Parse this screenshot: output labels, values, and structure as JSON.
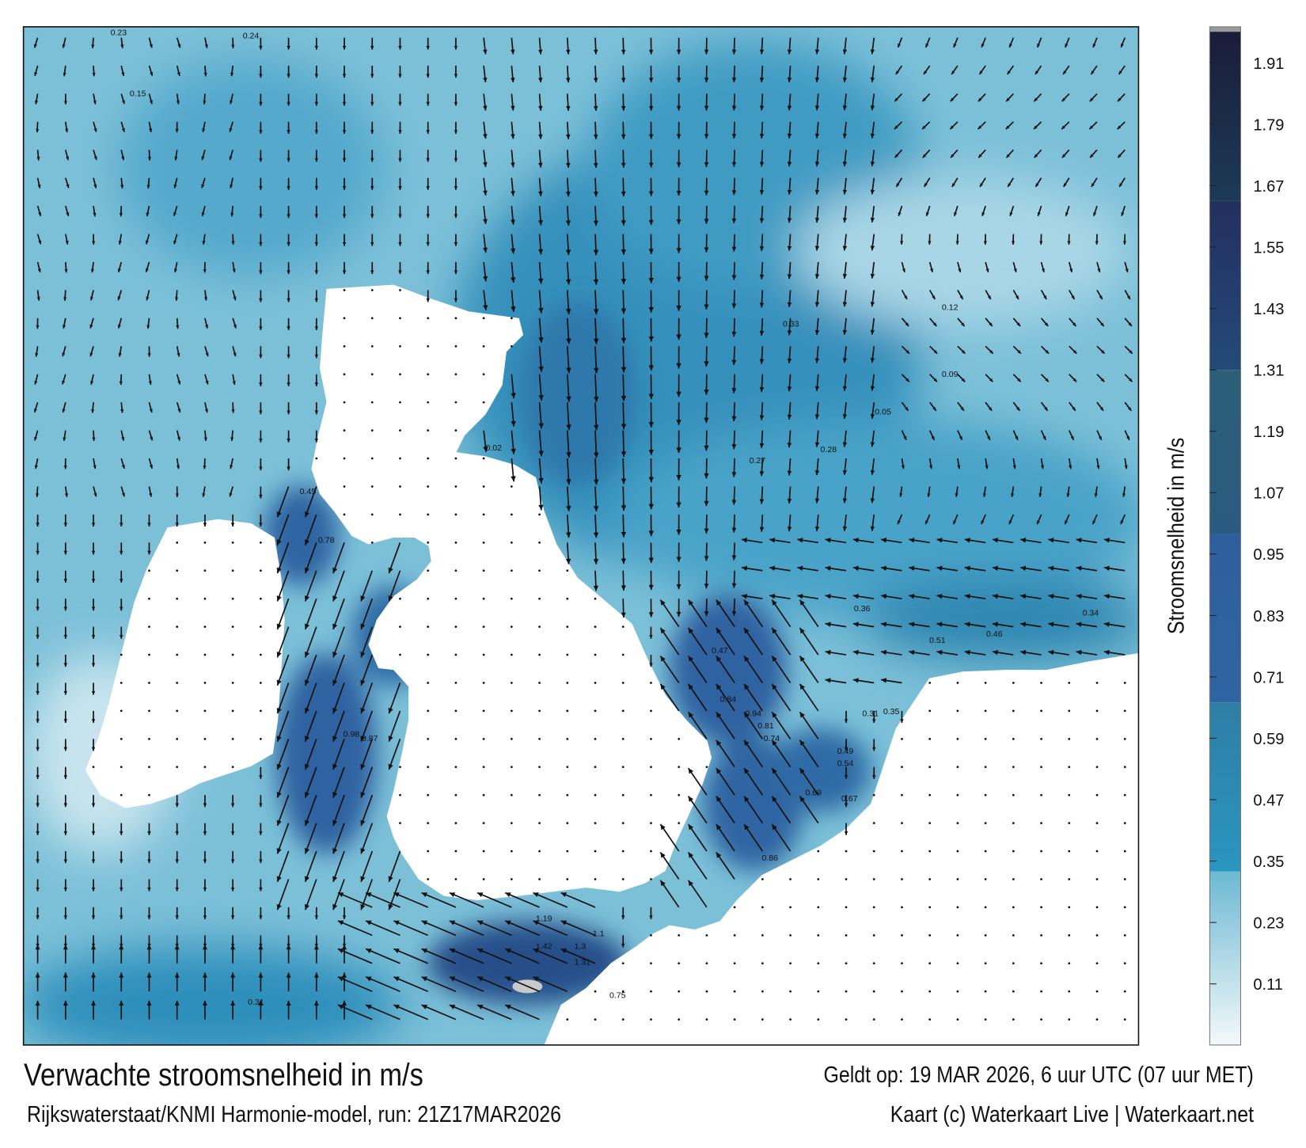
{
  "footer": {
    "title": "Verwachte stroomsnelheid in m/s",
    "model_run": "Rijkswaterstaat/KNMI Harmonie-model, run: 21Z17MAR2026",
    "valid_time": "Geldt op: 19 MAR 2026, 6 uur UTC (07 uur MET)",
    "credit": "Kaart (c) Waterkaart Live | Waterkaart.net"
  },
  "colorbar": {
    "title": "Stroomsnelheid in m/s",
    "ticks": [
      "0.11",
      "0.23",
      "0.35",
      "0.47",
      "0.59",
      "0.71",
      "0.83",
      "0.95",
      "1.07",
      "1.19",
      "1.31",
      "1.43",
      "1.55",
      "1.67",
      "1.79",
      "1.91"
    ],
    "range": [
      0,
      1.98
    ],
    "bands": [
      {
        "from": 0,
        "to": 0.33,
        "colors": [
          "#f4f9fb",
          "#6cb8d2"
        ]
      },
      {
        "from": 0.33,
        "to": 0.66,
        "colors": [
          "#2a96c0",
          "#2e7ea4"
        ]
      },
      {
        "from": 0.66,
        "to": 0.99,
        "colors": [
          "#2f65a2",
          "#2e5f9c"
        ]
      },
      {
        "from": 0.99,
        "to": 1.31,
        "colors": [
          "#2b5a80",
          "#2b5f77"
        ]
      },
      {
        "from": 1.31,
        "to": 1.64,
        "colors": [
          "#234a7a",
          "#232f5e"
        ]
      },
      {
        "from": 1.64,
        "to": 1.98,
        "colors": [
          "#1c3a55",
          "#1a1c3a"
        ]
      }
    ]
  },
  "map": {
    "water_color": "#3a96bf",
    "strong_current_color": "#2f5f9e",
    "land_color": "#ffffff",
    "value_labels": [
      "0.23",
      "0.24",
      "0.15",
      "0.31",
      "0.45",
      "0.78",
      "0.98",
      "0.87",
      "0.84",
      "0.94",
      "0.81",
      "0.74",
      "0.67",
      "0.69",
      "0.86",
      "1.19",
      "1.42",
      "1.3",
      "1.31",
      "1.1",
      "0.75",
      "0.51",
      "0.46",
      "0.34",
      "0.36",
      "0.28",
      "0.27",
      "0.33",
      "0.12",
      "0.09",
      "0.05",
      "0.02",
      "0.31",
      "0.35",
      "0.49",
      "0.54",
      "0.47"
    ]
  }
}
